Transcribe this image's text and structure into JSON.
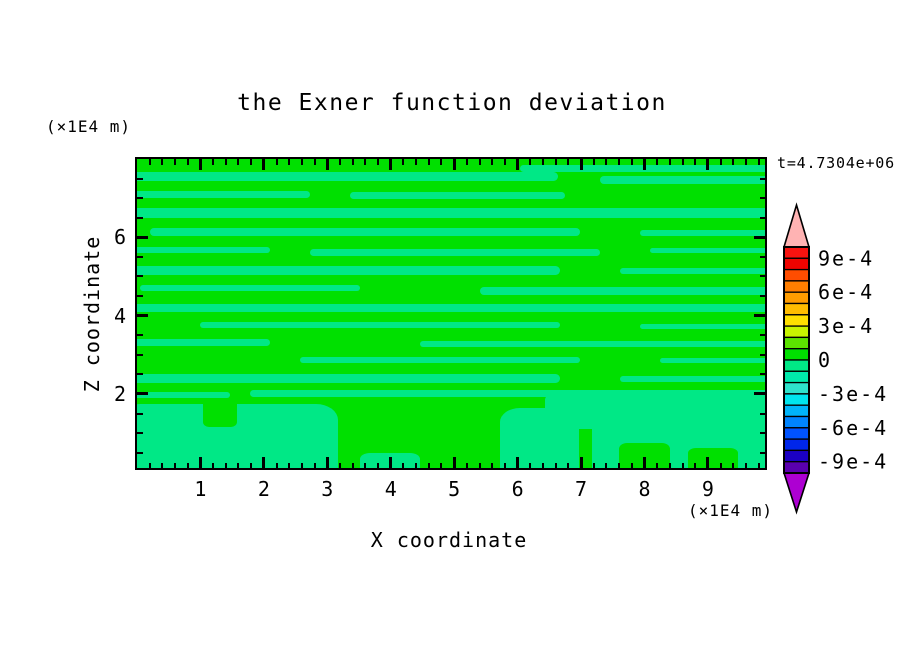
{
  "title": "the Exner function deviation",
  "annotations": {
    "time_label": "t=4.7304e+06",
    "y_axis_unit": "(×1E4 m)",
    "x_axis_unit": "(×1E4 m)"
  },
  "axes": {
    "x": {
      "label": "X coordinate",
      "min": 0,
      "max": 9.9,
      "major_ticks": [
        1,
        2,
        3,
        4,
        5,
        6,
        7,
        8,
        9
      ],
      "minor_step": 0.2
    },
    "z": {
      "label": "Z coordinate",
      "min": 0.11,
      "max": 8.0,
      "major_ticks": [
        2,
        4,
        6
      ],
      "minor_step": 0.5
    }
  },
  "colorbar": {
    "tick_labels": [
      "9e-4",
      "6e-4",
      "3e-4",
      "0",
      "-3e-4",
      "-6e-4",
      "-9e-4"
    ],
    "label_boundary_indices": [
      1,
      4,
      7,
      10,
      13,
      16,
      19
    ],
    "levels_min": -0.001,
    "levels_max": 0.001,
    "levels_step": 0.0001,
    "segment_colors_top_to_bottom": [
      "#f81310",
      "#ee0300",
      "#ff4d00",
      "#ff7e00",
      "#ff9c00",
      "#ffbc00",
      "#ffdf00",
      "#c8f400",
      "#5ce300",
      "#00e000",
      "#00e886",
      "#00e9ab",
      "#2ee2cc",
      "#00e5ee",
      "#00b4fa",
      "#0084ff",
      "#0053ff",
      "#0026ea",
      "#1b00c3",
      "#5a00ae"
    ],
    "over_arrow_color": "#ffb3b3",
    "under_arrow_color": "#ad00d2"
  },
  "chart_data": {
    "type": "heatmap",
    "subtype": "filled-contour",
    "title": "the Exner function deviation",
    "xlabel": "X coordinate",
    "ylabel": "Z coordinate",
    "x_range_x1e4_m": [
      0,
      9.9
    ],
    "z_range_x1e4_m": [
      0.11,
      8.0
    ],
    "time": "t=4.7304e+06",
    "contour_levels": "from -1e-3 to 1e-3, interval 1e-4",
    "description": "Field is everywhere within -1e-4..+1e-4 of zero: background band 0..1e-4 (green) with streaks of the -1e-4..0 band (spring green); streaks are thin and horizontal aloft, broad blobs below z≈2e4 m.",
    "colors": {
      "positive_band": "#00e000",
      "negative_band": "#00e886"
    },
    "negative_stripes_pct": [
      [
        61,
        2.0,
        39,
        2.3
      ],
      [
        0,
        4.2,
        67,
        2.9
      ],
      [
        73.7,
        5.5,
        26.3,
        2.6
      ],
      [
        0,
        10.4,
        27.5,
        2.3
      ],
      [
        33.9,
        10.7,
        34.2,
        2.3
      ],
      [
        0,
        15.9,
        100,
        3.2
      ],
      [
        2.1,
        22.3,
        68.5,
        2.6
      ],
      [
        80.1,
        23.0,
        19.9,
        1.9
      ],
      [
        0,
        28.5,
        21.2,
        1.9
      ],
      [
        27.5,
        29.1,
        46.2,
        2.3
      ],
      [
        81.7,
        28.8,
        18.3,
        1.6
      ],
      [
        0,
        34.6,
        67.4,
        2.9
      ],
      [
        76.9,
        35.3,
        23.1,
        1.9
      ],
      [
        0.5,
        40.8,
        35,
        1.9
      ],
      [
        54.6,
        41.4,
        45.4,
        2.6
      ],
      [
        0,
        46.9,
        100,
        2.6
      ],
      [
        10,
        52.8,
        57.3,
        1.9
      ],
      [
        80.1,
        53.4,
        19.9,
        1.6
      ],
      [
        0,
        58.3,
        21.2,
        2.3
      ],
      [
        45,
        58.9,
        55,
        1.9
      ],
      [
        26,
        64.1,
        44.6,
        1.9
      ],
      [
        83.3,
        64.4,
        16.7,
        1.6
      ],
      [
        0,
        69.6,
        67.4,
        2.9
      ],
      [
        76.9,
        70.2,
        23.1,
        1.9
      ],
      [
        0,
        75.4,
        14.8,
        1.9
      ],
      [
        18,
        74.8,
        82,
        2.3
      ]
    ],
    "negative_blobs_pct": [
      [
        0,
        79.3,
        32,
        20.7,
        "16px 22px 0 0 / 12px 16px 0 0"
      ],
      [
        57.8,
        80.5,
        12.6,
        19.5,
        "20px 20px 0 0 / 14px 14px 0 0"
      ],
      [
        65,
        75.5,
        22,
        12,
        "12px 30px 8px 0 / 8px 14px 6px 0"
      ],
      [
        72.5,
        75.5,
        27.5,
        24.5,
        "24px 0 0 0 / 16px 0 0 0"
      ],
      [
        35.5,
        95,
        9.6,
        5,
        "10px 10px 0 0 / 6px 6px 0 0"
      ]
    ],
    "positive_holes_pct": [
      [
        76.7,
        92,
        8.2,
        8,
        "8px 8px 0 0 / 6px 6px 0 0"
      ],
      [
        87.7,
        93.5,
        8,
        6.5,
        "8px 8px 0 0 / 5px 5px 0 0"
      ],
      [
        10.5,
        79.3,
        5.5,
        7.5,
        "0 0 6px 6px / 0 0 5px 5px"
      ]
    ]
  }
}
